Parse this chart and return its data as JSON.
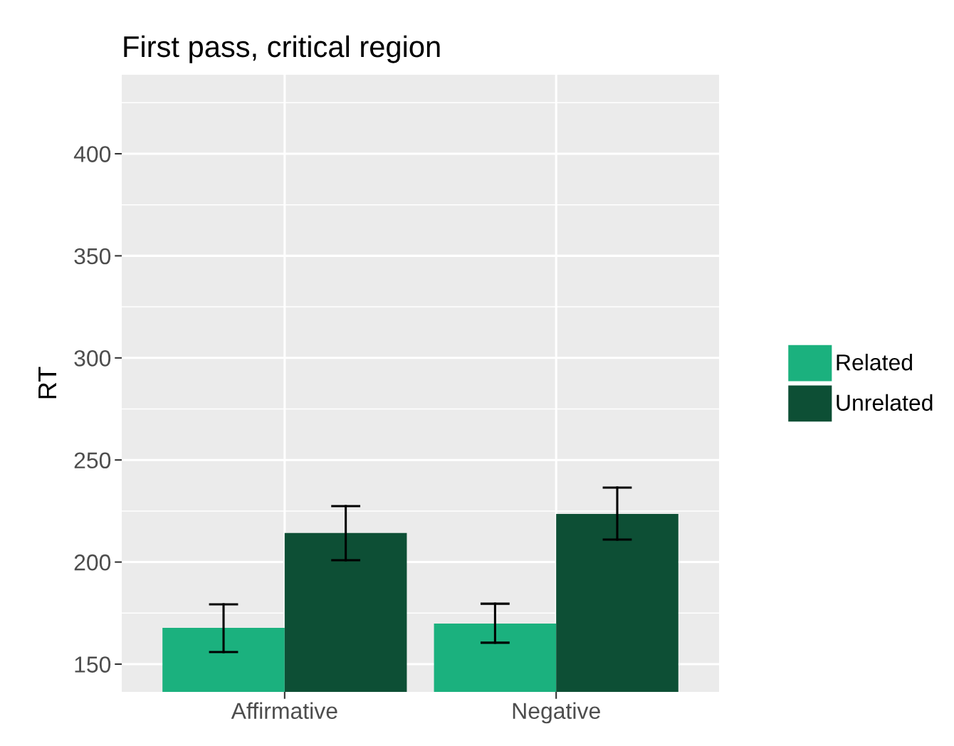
{
  "chart_data": {
    "type": "bar",
    "title": "First pass, critical region",
    "ylabel": "RT",
    "categories": [
      "Affirmative",
      "Negative"
    ],
    "series": [
      {
        "name": "Related",
        "color": "#1bb17e",
        "values": [
          167.8,
          169.9
        ],
        "errors": [
          [
            155.9,
            179.3
          ],
          [
            160.5,
            179.6
          ]
        ]
      },
      {
        "name": "Unrelated",
        "color": "#0d4f35",
        "values": [
          214.2,
          223.6
        ],
        "errors": [
          [
            200.9,
            227.4
          ],
          [
            211.0,
            236.5
          ]
        ]
      }
    ],
    "ylim": [
      136.4,
      438.7
    ],
    "yticks": [
      150,
      200,
      250,
      300,
      350,
      400
    ],
    "grid": true,
    "legend": "right"
  }
}
